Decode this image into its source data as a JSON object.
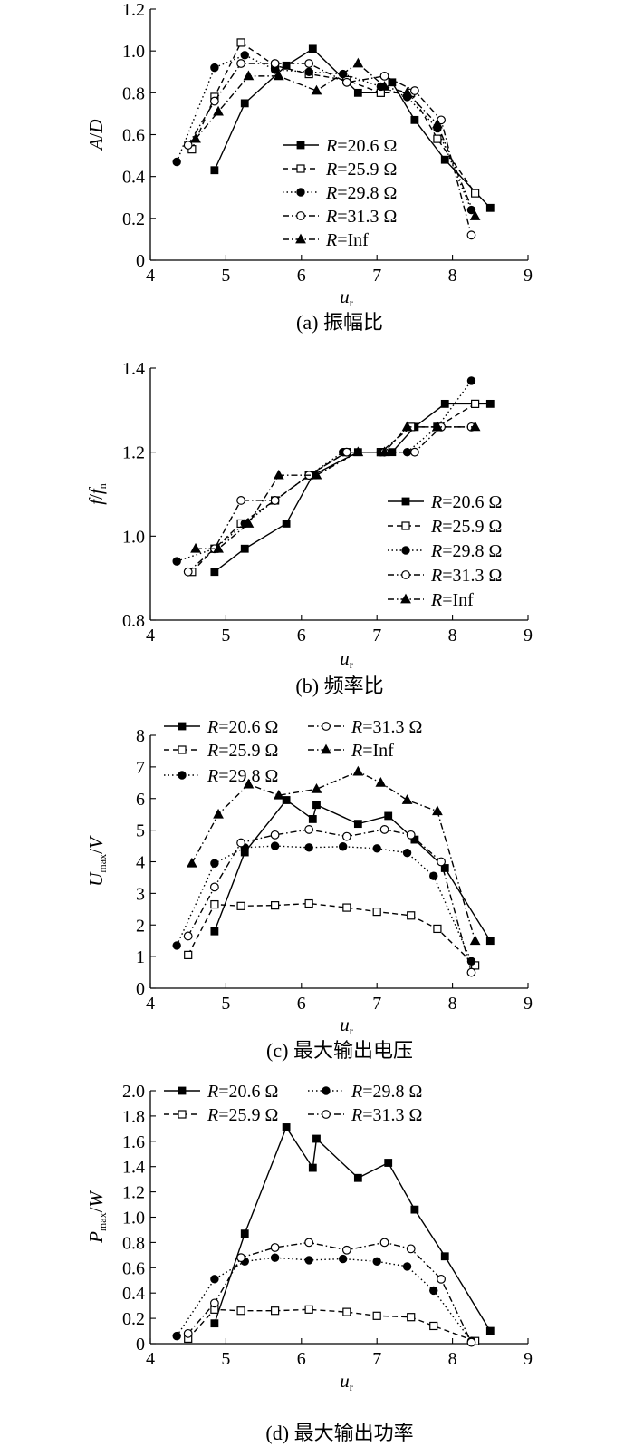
{
  "chart_data": [
    {
      "id": "a",
      "type": "line",
      "caption": "(a) 振幅比",
      "ylabel": "A/D",
      "xlabel": "u_r",
      "xlim": [
        4,
        9
      ],
      "ylim": [
        0,
        1.2
      ],
      "xticks": [
        4,
        5,
        6,
        7,
        8,
        9
      ],
      "yticks": [
        0,
        0.2,
        0.4,
        0.6,
        0.8,
        1.0,
        1.2
      ],
      "ytick_labels": [
        "0",
        "0.2",
        "0.4",
        "0.6",
        "0.8",
        "1.0",
        "1.2"
      ],
      "legend_position": "lower-center",
      "series": [
        {
          "name": "R=20.6 Ω",
          "marker": "square-filled",
          "dash": "solid",
          "x": [
            4.85,
            5.25,
            5.8,
            6.15,
            6.75,
            7.05,
            7.2,
            7.5,
            7.9,
            8.5
          ],
          "y": [
            0.43,
            0.75,
            0.93,
            1.01,
            0.8,
            0.8,
            0.85,
            0.67,
            0.48,
            0.25
          ]
        },
        {
          "name": "R=25.9 Ω",
          "marker": "square-open",
          "dash": "dashed",
          "x": [
            4.55,
            4.85,
            5.2,
            5.65,
            6.1,
            6.6,
            7.05,
            7.45,
            7.8,
            8.3
          ],
          "y": [
            0.53,
            0.78,
            1.04,
            0.93,
            0.89,
            0.86,
            0.8,
            0.8,
            0.58,
            0.32
          ]
        },
        {
          "name": "R=29.8 Ω",
          "marker": "circle-filled",
          "dash": "dotted",
          "x": [
            4.35,
            4.85,
            5.25,
            5.65,
            6.1,
            6.55,
            7.05,
            7.4,
            7.8,
            8.25
          ],
          "y": [
            0.47,
            0.92,
            0.98,
            0.91,
            0.9,
            0.89,
            0.83,
            0.78,
            0.63,
            0.24
          ]
        },
        {
          "name": "R=31.3 Ω",
          "marker": "circle-open",
          "dash": "dashdot",
          "x": [
            4.5,
            4.85,
            5.2,
            5.65,
            6.1,
            6.6,
            7.1,
            7.5,
            7.85,
            8.25
          ],
          "y": [
            0.55,
            0.76,
            0.94,
            0.94,
            0.94,
            0.85,
            0.88,
            0.81,
            0.67,
            0.12
          ]
        },
        {
          "name": "R=Inf",
          "marker": "triangle-filled",
          "dash": "dashdot",
          "x": [
            4.6,
            4.9,
            5.3,
            5.7,
            6.2,
            6.75,
            7.1,
            7.4,
            7.8,
            8.3
          ],
          "y": [
            0.58,
            0.71,
            0.88,
            0.88,
            0.81,
            0.94,
            0.83,
            0.8,
            0.65,
            0.21
          ]
        }
      ]
    },
    {
      "id": "b",
      "type": "line",
      "caption": "(b) 频率比",
      "ylabel": "f/f_n",
      "xlabel": "u_r",
      "xlim": [
        4,
        9
      ],
      "ylim": [
        0.8,
        1.4
      ],
      "xticks": [
        4,
        5,
        6,
        7,
        8,
        9
      ],
      "yticks": [
        0.8,
        1.0,
        1.2,
        1.4
      ],
      "ytick_labels": [
        "0.8",
        "1.0",
        "1.2",
        "1.4"
      ],
      "legend_position": "lower-right",
      "series": [
        {
          "name": "R=20.6 Ω",
          "marker": "square-filled",
          "dash": "solid",
          "x": [
            4.85,
            5.25,
            5.8,
            6.15,
            6.75,
            7.05,
            7.2,
            7.5,
            7.9,
            8.5
          ],
          "y": [
            0.915,
            0.97,
            1.03,
            1.145,
            1.2,
            1.2,
            1.2,
            1.26,
            1.315,
            1.315
          ]
        },
        {
          "name": "R=25.9 Ω",
          "marker": "square-open",
          "dash": "dashed",
          "x": [
            4.55,
            4.85,
            5.2,
            5.65,
            6.1,
            6.6,
            7.05,
            7.45,
            7.8,
            8.3
          ],
          "y": [
            0.915,
            0.97,
            1.03,
            1.085,
            1.145,
            1.2,
            1.2,
            1.26,
            1.26,
            1.315
          ]
        },
        {
          "name": "R=29.8 Ω",
          "marker": "circle-filled",
          "dash": "dotted",
          "x": [
            4.35,
            4.85,
            5.25,
            5.65,
            6.1,
            6.55,
            7.05,
            7.4,
            7.8,
            8.25
          ],
          "y": [
            0.94,
            0.97,
            1.03,
            1.085,
            1.145,
            1.2,
            1.2,
            1.2,
            1.26,
            1.37
          ]
        },
        {
          "name": "R=31.3 Ω",
          "marker": "circle-open",
          "dash": "dashdot",
          "x": [
            4.5,
            4.85,
            5.2,
            5.65,
            6.1,
            6.6,
            7.1,
            7.5,
            7.85,
            8.25
          ],
          "y": [
            0.915,
            0.97,
            1.085,
            1.085,
            1.145,
            1.2,
            1.2,
            1.2,
            1.26,
            1.26
          ]
        },
        {
          "name": "R=Inf",
          "marker": "triangle-filled",
          "dash": "dashdot",
          "x": [
            4.6,
            4.9,
            5.3,
            5.7,
            6.2,
            6.75,
            7.1,
            7.4,
            7.8,
            8.3
          ],
          "y": [
            0.97,
            0.97,
            1.03,
            1.145,
            1.145,
            1.2,
            1.2,
            1.26,
            1.26,
            1.26
          ]
        }
      ]
    },
    {
      "id": "c",
      "type": "line",
      "caption": "(c) 最大输出电压",
      "ylabel": "U_max/V",
      "xlabel": "u_r",
      "xlim": [
        4,
        9
      ],
      "ylim": [
        0,
        8
      ],
      "xticks": [
        4,
        5,
        6,
        7,
        8,
        9
      ],
      "yticks": [
        0,
        1,
        2,
        3,
        4,
        5,
        6,
        7,
        8
      ],
      "ytick_labels": [
        "0",
        "1",
        "2",
        "3",
        "4",
        "5",
        "6",
        "7",
        "8"
      ],
      "legend_position": "top",
      "series": [
        {
          "name": "R=20.6 Ω",
          "marker": "square-filled",
          "dash": "solid",
          "x": [
            4.85,
            5.25,
            5.8,
            6.15,
            6.2,
            6.75,
            7.15,
            7.5,
            7.9,
            8.5
          ],
          "y": [
            1.8,
            4.3,
            5.95,
            5.35,
            5.8,
            5.2,
            5.45,
            4.7,
            3.8,
            1.5
          ]
        },
        {
          "name": "R=25.9 Ω",
          "marker": "square-open",
          "dash": "dashed",
          "x": [
            4.5,
            4.85,
            5.2,
            5.65,
            6.1,
            6.6,
            7.0,
            7.45,
            7.8,
            8.3
          ],
          "y": [
            1.05,
            2.65,
            2.6,
            2.62,
            2.68,
            2.55,
            2.42,
            2.3,
            1.88,
            0.72
          ]
        },
        {
          "name": "R=29.8 Ω",
          "marker": "circle-filled",
          "dash": "dotted",
          "x": [
            4.35,
            4.85,
            5.25,
            5.65,
            6.1,
            6.55,
            7.0,
            7.4,
            7.75,
            8.25
          ],
          "y": [
            1.35,
            3.95,
            4.45,
            4.5,
            4.45,
            4.48,
            4.42,
            4.28,
            3.55,
            0.85
          ]
        },
        {
          "name": "R=31.3 Ω",
          "marker": "circle-open",
          "dash": "dashdot",
          "x": [
            4.5,
            4.85,
            5.2,
            5.65,
            6.1,
            6.6,
            7.1,
            7.45,
            7.85,
            8.25
          ],
          "y": [
            1.65,
            3.2,
            4.6,
            4.85,
            5.02,
            4.8,
            5.02,
            4.85,
            4.0,
            0.5
          ]
        },
        {
          "name": "R=Inf",
          "marker": "triangle-filled",
          "dash": "dashdot",
          "x": [
            4.55,
            4.9,
            5.3,
            5.7,
            6.2,
            6.75,
            7.05,
            7.4,
            7.8,
            8.3
          ],
          "y": [
            3.95,
            5.5,
            6.45,
            6.1,
            6.3,
            6.85,
            6.5,
            5.95,
            5.6,
            1.5
          ]
        }
      ]
    },
    {
      "id": "d",
      "type": "line",
      "caption": "(d) 最大输出功率",
      "ylabel": "P_max/W",
      "xlabel": "u_r",
      "xlim": [
        4,
        9
      ],
      "ylim": [
        0,
        2.0
      ],
      "xticks": [
        4,
        5,
        6,
        7,
        8,
        9
      ],
      "yticks": [
        0,
        0.2,
        0.4,
        0.6,
        0.8,
        1.0,
        1.2,
        1.4,
        1.6,
        1.8,
        2.0
      ],
      "ytick_labels": [
        "0",
        "0.2",
        "0.4",
        "0.6",
        "0.8",
        "1.0",
        "1.2",
        "1.4",
        "1.6",
        "1.8",
        "2.0"
      ],
      "legend_position": "top",
      "series": [
        {
          "name": "R=20.6 Ω",
          "marker": "square-filled",
          "dash": "solid",
          "x": [
            4.85,
            5.25,
            5.8,
            6.15,
            6.2,
            6.75,
            7.15,
            7.5,
            7.9,
            8.5
          ],
          "y": [
            0.16,
            0.87,
            1.71,
            1.39,
            1.62,
            1.31,
            1.43,
            1.06,
            0.69,
            0.1
          ]
        },
        {
          "name": "R=25.9 Ω",
          "marker": "square-open",
          "dash": "dashed",
          "x": [
            4.5,
            4.85,
            5.2,
            5.65,
            6.1,
            6.6,
            7.0,
            7.45,
            7.75,
            8.3
          ],
          "y": [
            0.04,
            0.27,
            0.26,
            0.26,
            0.27,
            0.25,
            0.22,
            0.21,
            0.14,
            0.02
          ]
        },
        {
          "name": "R=29.8 Ω",
          "marker": "circle-filled",
          "dash": "dotted",
          "x": [
            4.35,
            4.85,
            5.25,
            5.65,
            6.1,
            6.55,
            7.0,
            7.4,
            7.75,
            8.25
          ],
          "y": [
            0.06,
            0.51,
            0.65,
            0.68,
            0.66,
            0.67,
            0.65,
            0.61,
            0.42,
            0.02
          ]
        },
        {
          "name": "R=31.3 Ω",
          "marker": "circle-open",
          "dash": "dashdot",
          "x": [
            4.5,
            4.85,
            5.2,
            5.65,
            6.1,
            6.6,
            7.1,
            7.45,
            7.85,
            8.25
          ],
          "y": [
            0.08,
            0.32,
            0.68,
            0.76,
            0.8,
            0.74,
            0.8,
            0.75,
            0.51,
            0.01
          ]
        }
      ]
    }
  ]
}
